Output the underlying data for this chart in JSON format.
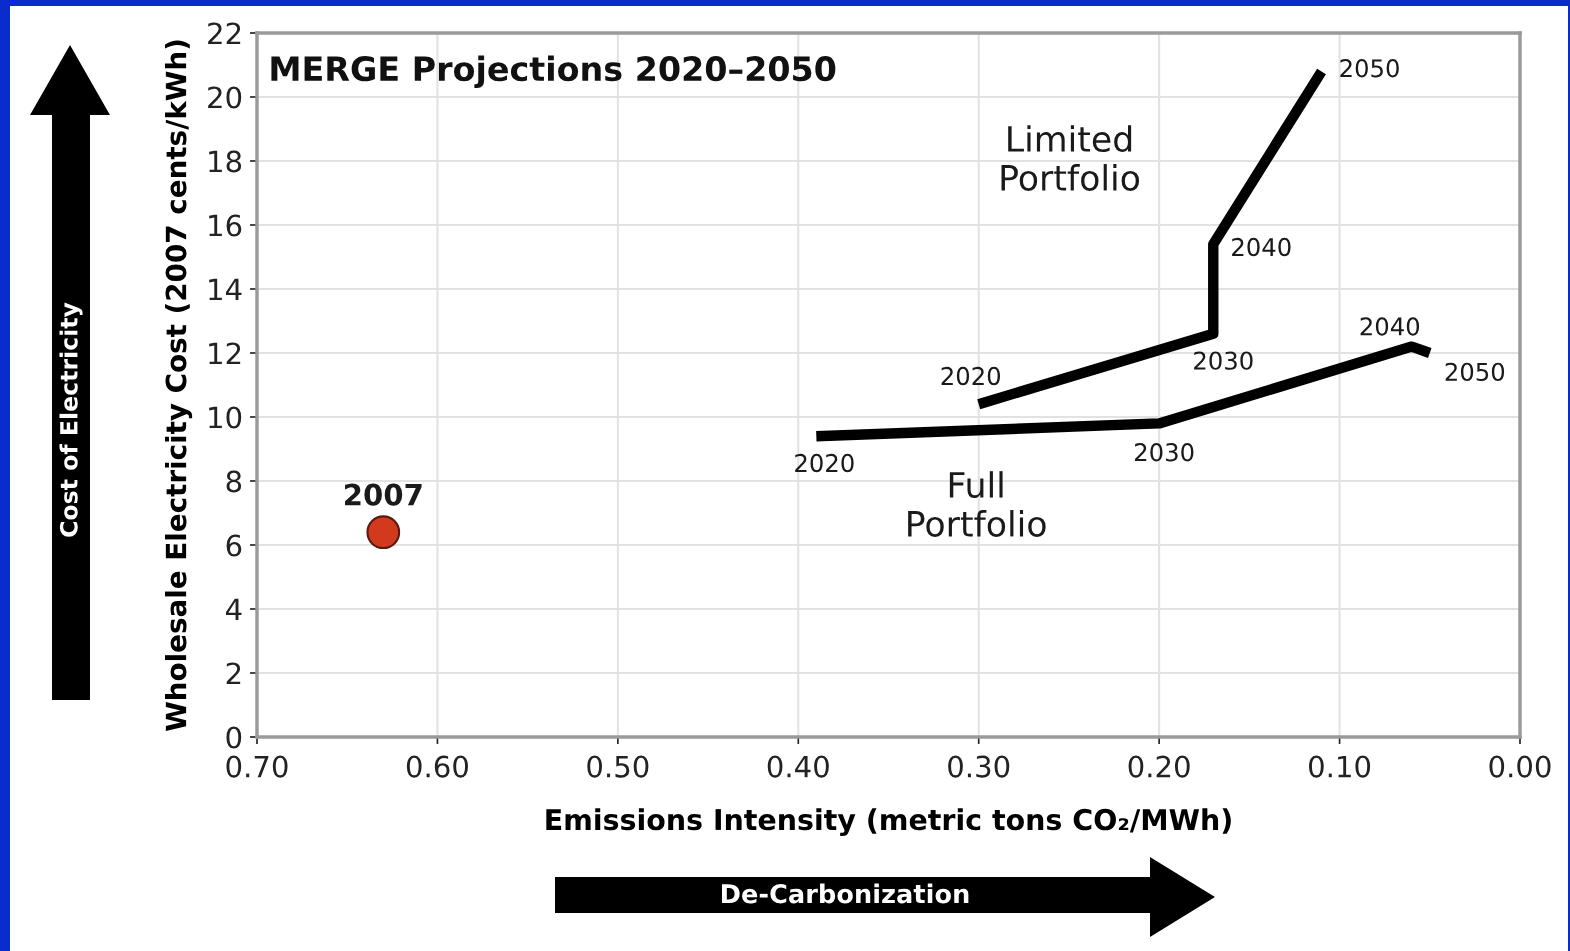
{
  "chart_data": {
    "type": "line",
    "title": "MERGE Projections 2020–2050",
    "xlabel": "Emissions Intensity (metric tons CO₂/MWh)",
    "ylabel": "Wholesale Electricity Cost (2007 cents/kWh)",
    "xlim": [
      0.7,
      0.0
    ],
    "xticks": [
      {
        "value": 0.7,
        "label": "0.70"
      },
      {
        "value": 0.6,
        "label": "0.60"
      },
      {
        "value": 0.5,
        "label": "0.50"
      },
      {
        "value": 0.4,
        "label": "0.40"
      },
      {
        "value": 0.3,
        "label": "0.30"
      },
      {
        "value": 0.2,
        "label": "0.20"
      },
      {
        "value": 0.1,
        "label": "0.10"
      },
      {
        "value": 0.0,
        "label": "0.00"
      }
    ],
    "ylim": [
      0,
      22
    ],
    "yticks": [
      0,
      2,
      4,
      6,
      8,
      10,
      12,
      14,
      16,
      18,
      20,
      22
    ],
    "grid": true,
    "legend": false,
    "line_style": "solid",
    "series": [
      {
        "name": "Limited Portfolio",
        "color": "#000000",
        "x": [
          0.3,
          0.17,
          0.17,
          0.11
        ],
        "values": [
          10.4,
          12.6,
          15.4,
          20.8
        ]
      },
      {
        "name": "Full Portfolio",
        "color": "#000000",
        "x": [
          0.39,
          0.2,
          0.06,
          0.05
        ],
        "values": [
          9.4,
          9.8,
          12.2,
          12.0
        ]
      },
      {
        "name": "2007",
        "type": "scatter",
        "marker": "circle",
        "color": "#d23a1e",
        "x": [
          0.63
        ],
        "values": [
          6.4
        ]
      }
    ],
    "annotations": [
      {
        "text": "2020",
        "x": 0.3,
        "y": 10.4
      },
      {
        "text": "2030",
        "x": 0.17,
        "y": 12.6
      },
      {
        "text": "2040",
        "x": 0.17,
        "y": 15.4
      },
      {
        "text": "2050",
        "x": 0.11,
        "y": 20.8
      },
      {
        "text": "2020",
        "x": 0.39,
        "y": 9.4
      },
      {
        "text": "2030",
        "x": 0.2,
        "y": 9.8
      },
      {
        "text": "2040",
        "x": 0.06,
        "y": 12.2
      },
      {
        "text": "2050",
        "x": 0.05,
        "y": 12.0
      },
      "Cost of Electricity",
      "De-Carbonization"
    ]
  }
}
